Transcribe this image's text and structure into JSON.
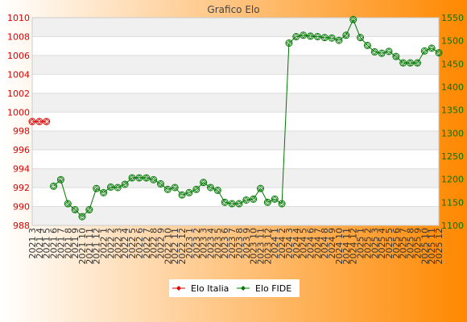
{
  "chart_data": {
    "type": "line",
    "title": "Grafico Elo",
    "x": [
      "2021 3",
      "2021 4",
      "2021 5",
      "2021 6",
      "2021 7",
      "2021 8",
      "2021 9",
      "2021 10",
      "2021 11",
      "2021 12",
      "2022 1",
      "2022 2",
      "2022 3",
      "2022 4",
      "2022 5",
      "2022 6",
      "2022 7",
      "2022 8",
      "2022 9",
      "2022 10",
      "2022 11",
      "2022 12",
      "2023 1",
      "2023 2",
      "2023 3",
      "2023 4",
      "2023 5",
      "2023 6",
      "2023 7",
      "2023 8",
      "2023 9",
      "2023 10",
      "2023 11",
      "2023 12",
      "2024 1",
      "2024 2",
      "2024 3",
      "2024 4",
      "2024 5",
      "2024 6",
      "2024 7",
      "2024 8",
      "2024 9",
      "2024 10",
      "2024 11",
      "2024 12",
      "2025 1",
      "2025 2",
      "2025 3",
      "2025 4",
      "2025 5",
      "2025 6",
      "2025 7",
      "2025 8",
      "2025 9",
      "2025 10",
      "2025 11",
      "2025 12"
    ],
    "y_left": {
      "ylim": [
        988,
        1010
      ],
      "ticks": [
        988,
        990,
        992,
        994,
        996,
        998,
        1000,
        1002,
        1004,
        1006,
        1008,
        1010
      ],
      "color": "#dd0000"
    },
    "y_right": {
      "ylim": [
        1100,
        1550
      ],
      "ticks": [
        1100,
        1150,
        1200,
        1250,
        1300,
        1350,
        1400,
        1450,
        1500,
        1550
      ],
      "color": "#007700"
    },
    "series": [
      {
        "name": "Elo Italia",
        "axis": "left",
        "color": "#dd0000",
        "values": [
          999,
          999,
          999,
          null,
          null,
          null,
          null,
          null,
          null,
          null,
          null,
          null,
          null,
          null,
          null,
          null,
          null,
          null,
          null,
          null,
          null,
          null,
          null,
          null,
          null,
          null,
          null,
          null,
          null,
          null,
          null,
          null,
          null,
          null,
          null,
          null,
          null,
          null,
          null,
          null,
          null,
          null,
          null,
          null,
          null,
          null,
          null,
          null,
          null,
          null,
          null,
          null,
          null,
          null,
          null,
          null,
          null,
          null
        ]
      },
      {
        "name": "Elo FIDE",
        "axis": "right",
        "color": "#007700",
        "values": [
          null,
          null,
          null,
          1185,
          1199,
          1147,
          1134,
          1119,
          1134,
          1180,
          1171,
          1183,
          1182,
          1189,
          1203,
          1203,
          1203,
          1199,
          1190,
          1178,
          1182,
          1166,
          1171,
          1178,
          1193,
          1182,
          1176,
          1150,
          1147,
          1147,
          1155,
          1157,
          1180,
          1150,
          1157,
          1147,
          1495,
          1509,
          1512,
          1510,
          1509,
          1507,
          1506,
          1501,
          1512,
          1546,
          1507,
          1490,
          1476,
          1473,
          1477,
          1466,
          1452,
          1452,
          1452,
          1478,
          1484,
          1474
        ]
      }
    ],
    "legend": {
      "placement": "bottom-center",
      "entries": [
        "Elo Italia",
        "Elo FIDE"
      ]
    },
    "grid": true,
    "background_gradient": [
      "#ffffff",
      "#ff8800"
    ]
  }
}
